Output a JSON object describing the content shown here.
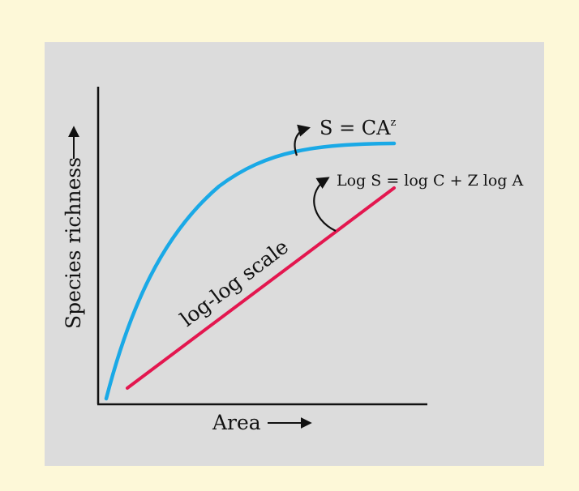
{
  "colors": {
    "page_background": "#fdf8d8",
    "panel_background": "#dcdcdc",
    "axis": "#111111",
    "curve": "#1aa9e6",
    "line": "#e3174f",
    "text": "#111111"
  },
  "labels": {
    "y_axis": "Species richness",
    "x_axis": "Area",
    "curve_equation_base": "S = CA",
    "curve_equation_exponent": "z",
    "line_equation": "Log S = log C + Z log A",
    "line_label": "log-log scale"
  }
}
